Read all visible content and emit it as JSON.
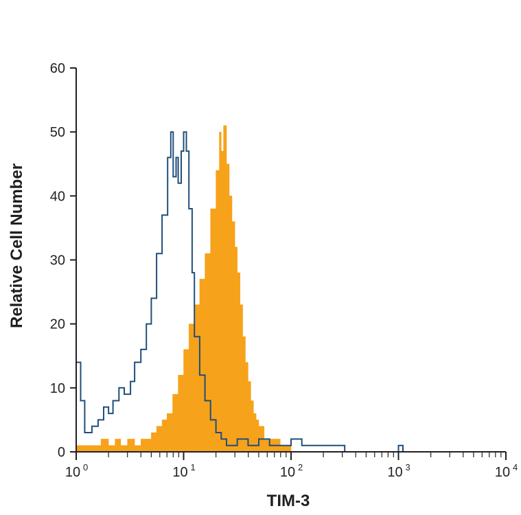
{
  "colors": {
    "filled": "#f7a21b",
    "outline": "#1f4e79",
    "axis": "#231f20"
  },
  "chart_data": {
    "type": "area",
    "title": "",
    "xlabel": "TIM-3",
    "ylabel": "Relative Cell Number",
    "x_scale": "log",
    "xlim": [
      1,
      10000
    ],
    "ylim": [
      0,
      60
    ],
    "y_ticks": [
      "0",
      "10",
      "20",
      "30",
      "40",
      "50",
      "60"
    ],
    "x_ticks": [
      {
        "value": 1,
        "base": "10",
        "exp": "0"
      },
      {
        "value": 10,
        "base": "10",
        "exp": "1"
      },
      {
        "value": 100,
        "base": "10",
        "exp": "2"
      },
      {
        "value": 1000,
        "base": "10",
        "exp": "3"
      },
      {
        "value": 10000,
        "base": "10",
        "exp": "4"
      }
    ],
    "grid": false,
    "legend": "none",
    "series": [
      {
        "style": "filled",
        "x": [
          1.0,
          1.2,
          1.5,
          1.7,
          2.0,
          2.3,
          2.6,
          3.0,
          3.5,
          4.0,
          4.5,
          5.0,
          5.6,
          6.3,
          7.0,
          7.9,
          8.9,
          10.0,
          11.2,
          12.6,
          14.1,
          15.8,
          17.8,
          20.0,
          21.5,
          22.4,
          23.5,
          25.1,
          26.6,
          28.2,
          30.0,
          31.6,
          33.5,
          35.5,
          37.6,
          39.8,
          42.2,
          44.7,
          47.3,
          50.1,
          56.2,
          63.1,
          70.8,
          79.4,
          89.1,
          100.0,
          112.2
        ],
        "y": [
          1,
          1,
          1,
          2,
          1,
          2,
          1,
          2,
          1,
          2,
          2,
          3,
          4,
          5,
          6,
          9,
          12,
          16,
          20,
          23,
          27,
          31,
          38,
          44,
          50,
          47,
          51,
          45,
          40,
          36,
          32,
          28,
          23,
          18,
          14,
          11,
          8,
          6,
          5,
          4,
          2,
          2,
          2,
          1,
          1,
          0,
          0
        ]
      },
      {
        "style": "outline",
        "x": [
          1.0,
          1.1,
          1.2,
          1.4,
          1.6,
          1.8,
          2.0,
          2.2,
          2.5,
          2.8,
          3.2,
          3.5,
          4.0,
          4.5,
          5.0,
          5.6,
          6.3,
          7.1,
          7.6,
          8.0,
          8.5,
          8.9,
          9.5,
          10.0,
          10.6,
          11.2,
          12.0,
          12.6,
          14.1,
          15.8,
          17.8,
          20.0,
          22.4,
          25.1,
          28.2,
          31.6,
          39.8,
          50.1,
          63.1,
          79.4,
          100.0,
          125.9,
          158.5,
          199.5,
          251.2,
          316.2,
          501.2,
          794.3,
          1000.0,
          1050.0,
          1100.0,
          1150.0
        ],
        "y": [
          14,
          8,
          3,
          4,
          5,
          7,
          6,
          8,
          10,
          9,
          11,
          14,
          16,
          20,
          24,
          31,
          37,
          46,
          50,
          43,
          46,
          42,
          47,
          50,
          47,
          38,
          28,
          18,
          12,
          8,
          5,
          3,
          2,
          1,
          1,
          2,
          1,
          2,
          1,
          1,
          2,
          1,
          1,
          1,
          1,
          0,
          0,
          0,
          1,
          1,
          0,
          0
        ]
      }
    ]
  }
}
